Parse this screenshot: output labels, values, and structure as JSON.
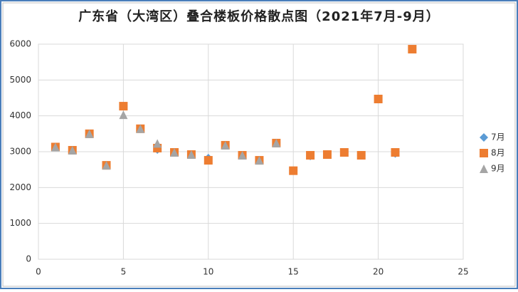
{
  "chart_data": {
    "type": "scatter",
    "title": "广东省（大湾区）叠合楼板价格散点图（2021年7月-9月）",
    "xlim": [
      0,
      25
    ],
    "xticks": [
      0,
      5,
      10,
      15,
      20,
      25
    ],
    "ylim": [
      0,
      6000
    ],
    "yticks": [
      0,
      1000,
      2000,
      3000,
      4000,
      5000,
      6000
    ],
    "grid": true,
    "legend": "right",
    "series": [
      {
        "name": "7月",
        "color": "#5b9bd5",
        "marker": "diamond",
        "x": [
          1,
          2,
          3,
          4,
          5,
          6,
          7,
          8,
          9,
          10,
          11,
          12,
          13,
          14,
          15,
          16,
          17,
          18,
          19,
          21
        ],
        "values": [
          3130,
          3040,
          3500,
          2620,
          4270,
          3640,
          3060,
          2980,
          2920,
          2820,
          3180,
          2900,
          2760,
          3240,
          2470,
          2880,
          2920,
          2980,
          2900,
          2950
        ]
      },
      {
        "name": "8月",
        "color": "#ed7d31",
        "marker": "square",
        "x": [
          1,
          2,
          3,
          4,
          5,
          6,
          7,
          8,
          9,
          10,
          11,
          12,
          13,
          14,
          15,
          16,
          17,
          18,
          19,
          20,
          21,
          22
        ],
        "values": [
          3130,
          3040,
          3500,
          2620,
          4270,
          3640,
          3100,
          2980,
          2920,
          2760,
          3180,
          2900,
          2760,
          3240,
          2470,
          2900,
          2920,
          2980,
          2900,
          4470,
          2980,
          5860
        ]
      },
      {
        "name": "9月",
        "color": "#a5a5a5",
        "marker": "triangle",
        "x": [
          1,
          2,
          3,
          4,
          5,
          6,
          7,
          8,
          9,
          11,
          12,
          13,
          14
        ],
        "values": [
          3130,
          3040,
          3500,
          2620,
          4030,
          3640,
          3230,
          2980,
          2920,
          3180,
          2900,
          2760,
          3240
        ]
      }
    ]
  }
}
